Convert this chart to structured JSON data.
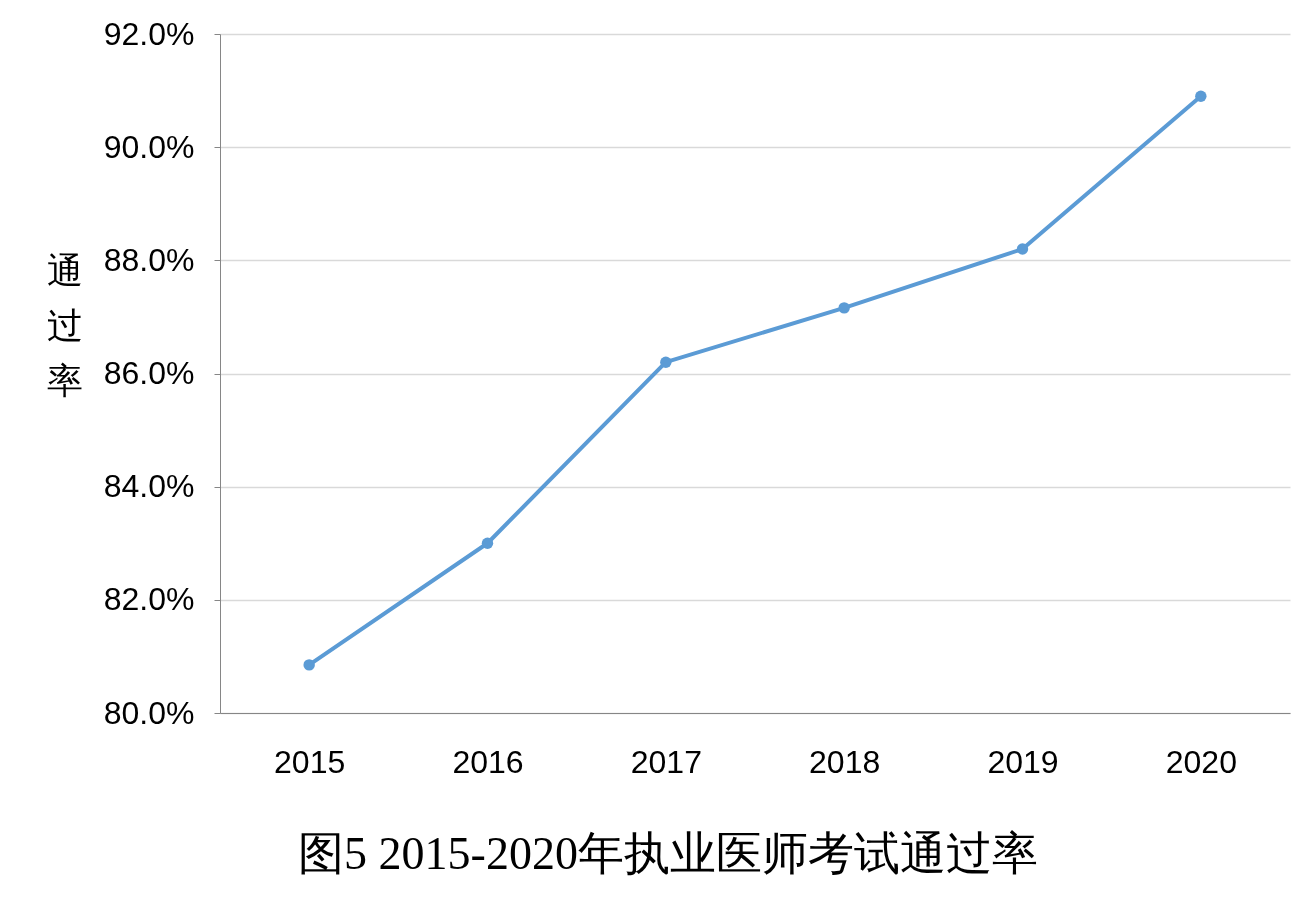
{
  "chart_data": {
    "type": "line",
    "title": "图5 2015-2020年执业医师考试通过率",
    "ylabel": "通过率",
    "categories": [
      "2015",
      "2016",
      "2017",
      "2018",
      "2019",
      "2020"
    ],
    "series": [
      {
        "color": "#5b9bd5",
        "values": [
          80.85,
          83.0,
          86.2,
          87.16,
          88.2,
          90.9
        ]
      }
    ],
    "ylim": [
      80,
      92
    ],
    "yticks": [
      {
        "value": 80,
        "label": "80.0%"
      },
      {
        "value": 82,
        "label": "82.0%"
      },
      {
        "value": 84,
        "label": "84.0%"
      },
      {
        "value": 86,
        "label": "86.0%"
      },
      {
        "value": 88,
        "label": "88.0%"
      },
      {
        "value": 90,
        "label": "90.0%"
      },
      {
        "value": 92,
        "label": "92.0%"
      }
    ],
    "grid": "y",
    "marker": "circle"
  }
}
